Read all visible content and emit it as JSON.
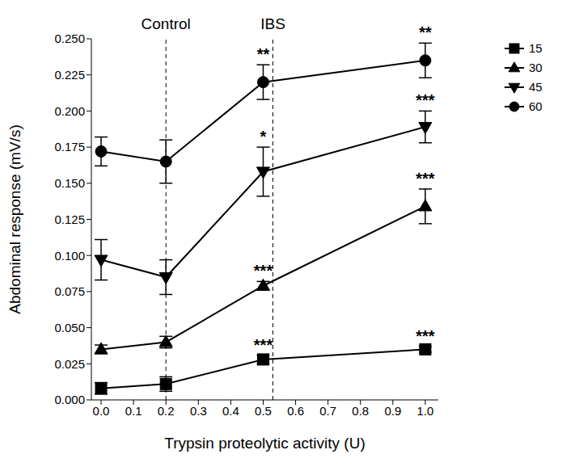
{
  "chart_data": {
    "type": "line",
    "x_label": "Trypsin proteolytic activity (U)",
    "y_label": "Abdominal response (mV/s)",
    "x": [
      0,
      0.2,
      0.5,
      1.0
    ],
    "xlim": [
      -0.03,
      1.04
    ],
    "xticks": [
      {
        "value": 0,
        "label": "0.0"
      },
      0.1,
      0.2,
      0.3,
      0.4,
      0.5,
      0.6,
      0.7,
      0.8,
      0.9,
      {
        "value": 1,
        "label": "1.0"
      }
    ],
    "ylim": [
      0,
      0.25
    ],
    "yticks": [
      {
        "value": 0,
        "label": "0.000"
      },
      0.025,
      {
        "value": 0.05,
        "label": "0.050"
      },
      0.075,
      {
        "value": 0.1,
        "label": "0.100"
      },
      0.125,
      {
        "value": 0.15,
        "label": "0.150"
      },
      0.175,
      {
        "value": 0.2,
        "label": "0.200"
      },
      0.225,
      {
        "value": 0.25,
        "label": "0.250"
      }
    ],
    "legend": "right",
    "reference_lines": [
      {
        "x": 0.2,
        "label": "Control"
      },
      {
        "x": 0.53,
        "label": "IBS"
      }
    ],
    "series": [
      {
        "name": "15",
        "color": "#000000",
        "marker": "square",
        "values": [
          0.008,
          0.011,
          0.028,
          0.035
        ],
        "errors": [
          0.004,
          0.005,
          0.003,
          0.002
        ],
        "significance": [
          null,
          null,
          "***",
          "***"
        ]
      },
      {
        "name": "30",
        "color": "#000000",
        "marker": "triangle",
        "values": [
          0.035,
          0.04,
          0.079,
          0.134
        ],
        "errors": [
          0.003,
          0.004,
          0.003,
          0.012
        ],
        "significance": [
          null,
          null,
          "***",
          "***"
        ]
      },
      {
        "name": "45",
        "color": "#000000",
        "marker": "triangle-down",
        "values": [
          0.097,
          0.085,
          0.158,
          0.189
        ],
        "errors": [
          0.014,
          0.012,
          0.017,
          0.011
        ],
        "significance": [
          null,
          null,
          "*",
          "***"
        ]
      },
      {
        "name": "60",
        "color": "#000000",
        "marker": "circle",
        "values": [
          0.172,
          0.165,
          0.22,
          0.235
        ],
        "errors": [
          0.01,
          0.015,
          0.012,
          0.012
        ],
        "significance": [
          null,
          null,
          "**",
          "**"
        ]
      }
    ]
  }
}
